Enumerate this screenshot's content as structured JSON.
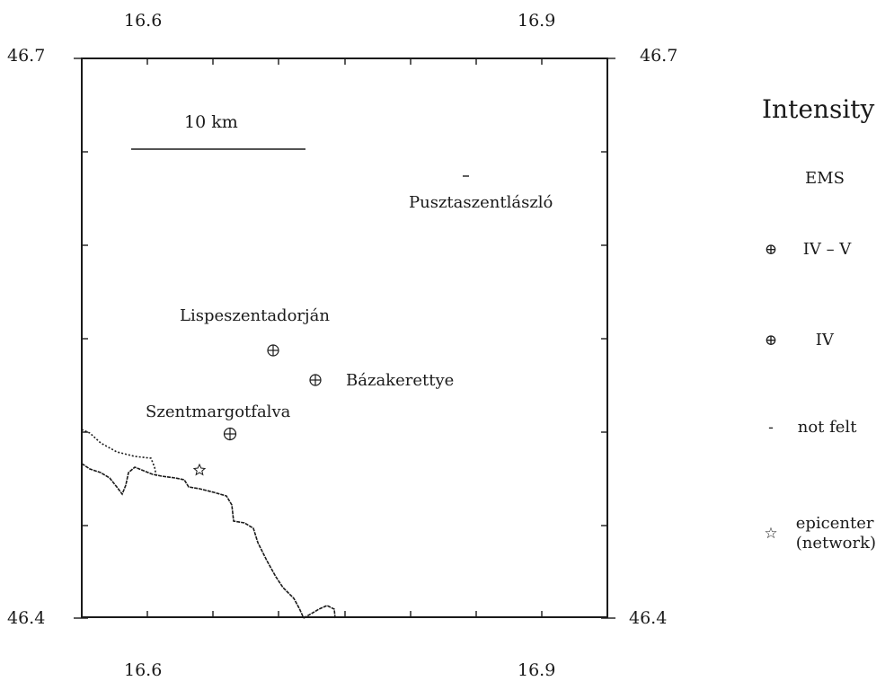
{
  "axes": {
    "top_x_ticks": [
      "16.6",
      "16.9"
    ],
    "bottom_x_ticks": [
      "16.6",
      "16.9"
    ],
    "left_y_ticks": [
      "46.7",
      "46.4"
    ],
    "right_y_ticks": [
      "46.7",
      "46.4"
    ]
  },
  "scale_bar": {
    "label": "10  km"
  },
  "places": [
    {
      "name": "Pusztaszentlászló",
      "symbol": "-"
    },
    {
      "name": "Lispeszentadorján",
      "symbol": "⊕"
    },
    {
      "name": "Bázakerettye",
      "symbol": "⊕"
    },
    {
      "name": "Szentmargotfalva",
      "symbol": "⊕"
    }
  ],
  "legend": {
    "title": "Intensity",
    "subtitle": "EMS",
    "items": [
      {
        "symbol": "⊕",
        "label": "IV – V"
      },
      {
        "symbol": "⊕",
        "label": "IV"
      },
      {
        "symbol": "-",
        "label": "not felt"
      },
      {
        "symbol": "☆",
        "label": "epicenter",
        "label2": "(network)"
      }
    ]
  },
  "colors": {
    "ink": "#1a1a1a",
    "background": "#ffffff"
  }
}
